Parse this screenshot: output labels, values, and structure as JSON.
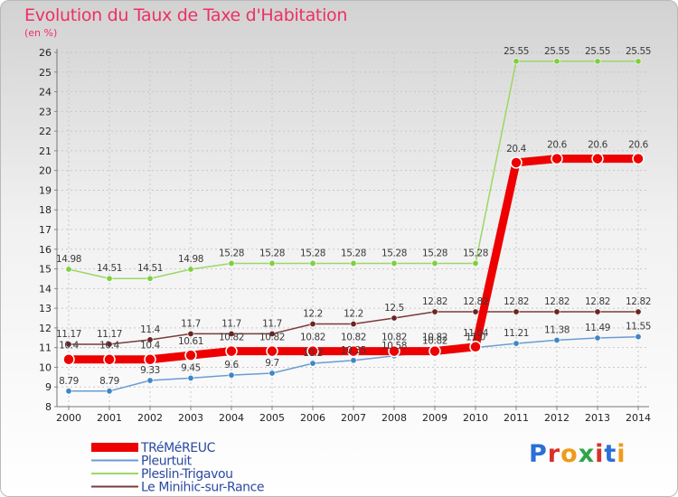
{
  "title": "Evolution du Taux de Taxe d'Habitation",
  "subtitle": "(en %)",
  "logo": {
    "text": "Proxiti",
    "colors": [
      "#2b6fd6",
      "#d6312b",
      "#f09a1a",
      "#2fa54a",
      "#d6312b",
      "#2b6fd6",
      "#f09a1a"
    ]
  },
  "chart_data": {
    "type": "line",
    "title": "Evolution du Taux de Taxe d'Habitation",
    "ylabel": "(en %)",
    "xlabel": "",
    "x": [
      "2000",
      "2001",
      "2002",
      "2003",
      "2004",
      "2005",
      "2006",
      "2007",
      "2008",
      "2009",
      "2010",
      "2011",
      "2012",
      "2013",
      "2014"
    ],
    "ylim": [
      8,
      26
    ],
    "yticks": [
      "8",
      "9",
      "10",
      "11",
      "12",
      "13",
      "14",
      "15",
      "16",
      "17",
      "18",
      "19",
      "20",
      "21",
      "22",
      "23",
      "24",
      "25",
      "26"
    ],
    "grid": true,
    "legend": "bottom-left",
    "series": [
      {
        "name": "TRéMéREUC",
        "color": "#ee0000",
        "width": 9,
        "radius": 6,
        "labels": true,
        "values": [
          10.4,
          10.4,
          10.4,
          10.61,
          10.82,
          10.82,
          10.82,
          10.82,
          10.82,
          10.82,
          11.04,
          20.4,
          20.6,
          20.6,
          20.6
        ],
        "display": [
          "10.4",
          "10.4",
          "10.4",
          "10.61",
          "10.82",
          "10.82",
          "10.82",
          "10.82",
          "10.82",
          "10.82",
          "11.04",
          "20.4",
          "20.6",
          "20.6",
          "20.6"
        ]
      },
      {
        "name": "Pleurtuit",
        "color": "#6a9cd4",
        "dot": "#3e86c8",
        "width": 1.5,
        "radius": 3.2,
        "labels": true,
        "values": [
          8.79,
          8.79,
          9.33,
          9.45,
          9.6,
          9.7,
          10.2,
          10.35,
          10.58,
          10.82,
          11.0,
          11.21,
          11.38,
          11.49,
          11.55
        ],
        "display": [
          "8.79",
          "8.79",
          "9.33",
          "9.45",
          "9.6",
          "9.7",
          "10.2",
          "10.35",
          "10.58",
          "10.82",
          "11.0",
          "11.21",
          "11.38",
          "11.49",
          "11.55"
        ]
      },
      {
        "name": "Pleslin-Trigavou",
        "color": "#99d866",
        "dot": "#7ecf3f",
        "width": 1.5,
        "radius": 3.2,
        "labels": true,
        "values": [
          14.98,
          14.51,
          14.51,
          14.98,
          15.28,
          15.28,
          15.28,
          15.28,
          15.28,
          15.28,
          15.28,
          25.55,
          25.55,
          25.55,
          25.55
        ],
        "display": [
          "14.98",
          "14.51",
          "14.51",
          "14.98",
          "15.28",
          "15.28",
          "15.28",
          "15.28",
          "15.28",
          "15.28",
          "15.28",
          "25.55",
          "25.55",
          "25.55",
          "25.55"
        ]
      },
      {
        "name": "Le Minihic-sur-Rance",
        "color": "#7a3b3b",
        "dot": "#6b2323",
        "width": 1.5,
        "radius": 3.2,
        "labels": true,
        "values": [
          11.17,
          11.17,
          11.4,
          11.7,
          11.7,
          11.7,
          12.2,
          12.2,
          12.5,
          12.82,
          12.82,
          12.82,
          12.82,
          12.82,
          12.82
        ],
        "display": [
          "11.17",
          "11.17",
          "11.4",
          "11.7",
          "11.7",
          "11.7",
          "12.2",
          "12.2",
          "12.5",
          "12.82",
          "12.82",
          "12.82",
          "12.82",
          "12.82",
          "12.82"
        ]
      }
    ]
  }
}
